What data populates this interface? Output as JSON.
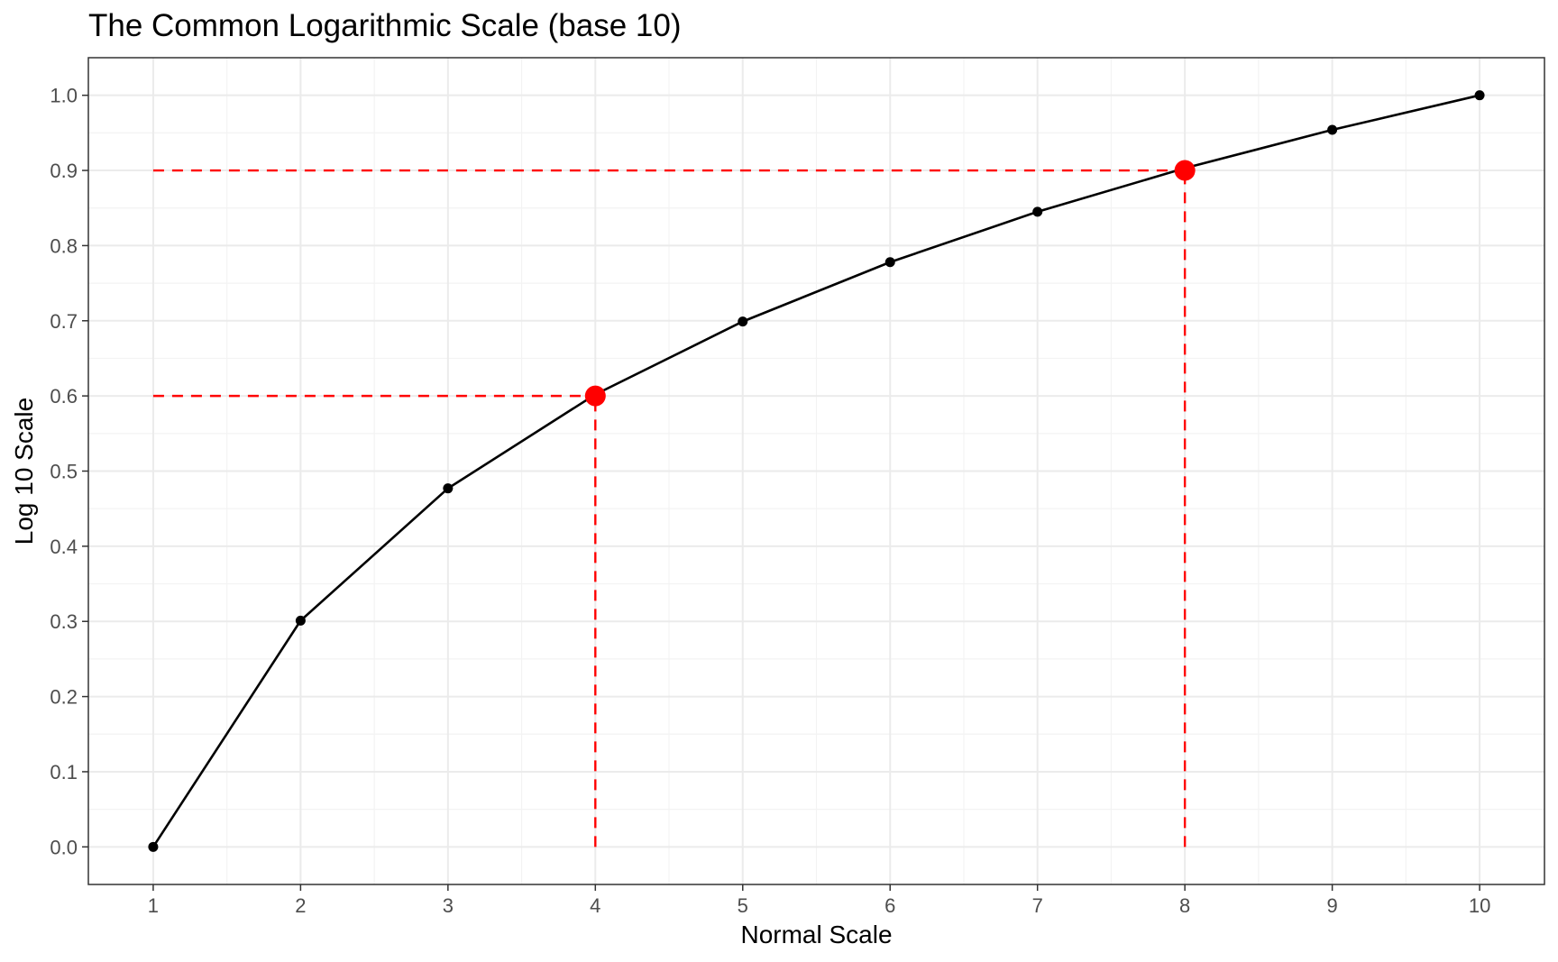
{
  "chart_data": {
    "type": "line",
    "title": "The Common Logarithmic Scale (base 10)",
    "xlabel": "Normal Scale",
    "ylabel": "Log 10 Scale",
    "xlim": [
      0.56,
      10.44
    ],
    "ylim": [
      -0.05,
      1.05
    ],
    "x_ticks": [
      1,
      2,
      3,
      4,
      5,
      6,
      7,
      8,
      9,
      10
    ],
    "x_tick_labels": [
      "1",
      "2",
      "3",
      "4",
      "5",
      "6",
      "7",
      "8",
      "9",
      "10"
    ],
    "y_ticks": [
      0.0,
      0.1,
      0.2,
      0.3,
      0.4,
      0.5,
      0.6,
      0.7,
      0.8,
      0.9,
      1.0
    ],
    "y_tick_labels": [
      "0.0",
      "0.1",
      "0.2",
      "0.3",
      "0.4",
      "0.5",
      "0.6",
      "0.7",
      "0.8",
      "0.9",
      "1.0"
    ],
    "grid": true,
    "legend": "none",
    "series": [
      {
        "x": [
          1,
          2,
          3,
          4,
          5,
          6,
          7,
          8,
          9,
          10
        ],
        "values": [
          0.0,
          0.301,
          0.477,
          0.602,
          0.699,
          0.778,
          0.845,
          0.903,
          0.954,
          1.0
        ],
        "color": "#000000"
      }
    ],
    "highlight_points": [
      {
        "x": 4,
        "y": 0.6,
        "color": "#ff0000"
      },
      {
        "x": 8,
        "y": 0.9,
        "color": "#ff0000"
      }
    ],
    "reference_lines": [
      {
        "x_from": 1,
        "x_to": 4,
        "y_from": 0.6,
        "y_to": 0.6,
        "color": "#ff0000",
        "style": "dashed"
      },
      {
        "x_from": 4,
        "x_to": 4,
        "y_from": 0.0,
        "y_to": 0.6,
        "color": "#ff0000",
        "style": "dashed"
      },
      {
        "x_from": 1,
        "x_to": 8,
        "y_from": 0.9,
        "y_to": 0.9,
        "color": "#ff0000",
        "style": "dashed"
      },
      {
        "x_from": 8,
        "x_to": 8,
        "y_from": 0.0,
        "y_to": 0.9,
        "color": "#ff0000",
        "style": "dashed"
      }
    ]
  }
}
